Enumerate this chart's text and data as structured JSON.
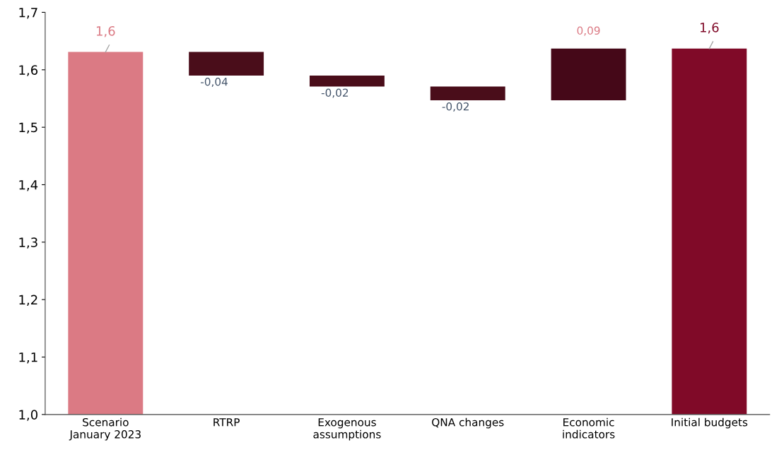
{
  "chart_data": {
    "type": "bar",
    "categories": [
      "Scenario January 2023",
      "RTRP",
      "Exogenous assumptions",
      "QNA changes",
      "Economic indicators",
      "Initial budgets"
    ],
    "base": [
      1.0,
      1.631,
      1.59,
      1.571,
      1.547,
      1.0
    ],
    "values": [
      0.631,
      -0.041,
      -0.019,
      -0.024,
      0.09,
      0.637
    ],
    "colors": [
      "#db7a84",
      "#4a0d1a",
      "#4a0d1a",
      "#4a0d1a",
      "#450818",
      "#800a28"
    ],
    "value_labels": [
      "1,6",
      "-0,04",
      "-0,02",
      "-0,02",
      "0,09",
      "1,6"
    ],
    "ylim": [
      1.0,
      1.7
    ],
    "yticks": [
      {
        "value": 1.0,
        "label": "1,0"
      },
      {
        "value": 1.1,
        "label": "1,1"
      },
      {
        "value": 1.2,
        "label": "1,2"
      },
      {
        "value": 1.3,
        "label": "1,3"
      },
      {
        "value": 1.4,
        "label": "1,4"
      },
      {
        "value": 1.5,
        "label": "1,5"
      },
      {
        "value": 1.6,
        "label": "1,6"
      },
      {
        "value": 1.7,
        "label": "1,7"
      }
    ],
    "grid": false,
    "legend": false
  }
}
